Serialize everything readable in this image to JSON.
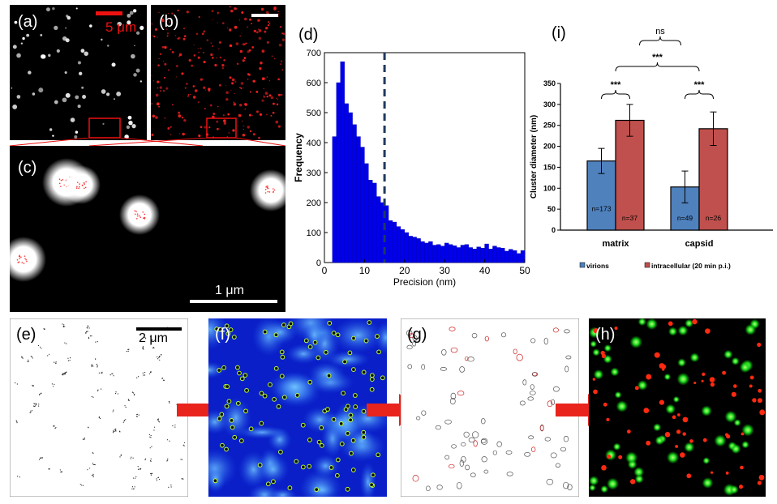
{
  "panels": {
    "a": {
      "letter": "(a)",
      "scalebar": "5 μm"
    },
    "b": {
      "letter": "(b)"
    },
    "c": {
      "letter": "(c)",
      "scalebar": "1 μm"
    },
    "d": {
      "letter": "(d)"
    },
    "i": {
      "letter": "(i)"
    },
    "e": {
      "letter": "(e)",
      "scalebar": "2 μm"
    },
    "f": {
      "letter": "(f)"
    },
    "g": {
      "letter": "(g)"
    },
    "h": {
      "letter": "(h)"
    }
  },
  "colors": {
    "histogram_bar": "#0000ee",
    "dashed_line": "#1f3a5f",
    "virions": "#4f81bd",
    "intracellular": "#c0504d",
    "arrow": "#e8241c"
  },
  "chart_data": [
    {
      "id": "d",
      "type": "bar",
      "xlabel": "Precision (nm)",
      "ylabel": "Frequency",
      "xlim": [
        0,
        50
      ],
      "ylim": [
        0,
        700
      ],
      "xticks": [
        0,
        10,
        20,
        30,
        40,
        50
      ],
      "yticks": [
        0,
        100,
        200,
        300,
        400,
        500,
        600,
        700
      ],
      "threshold": 15,
      "bin_width": 1,
      "bin_starts": [
        2,
        3,
        4,
        5,
        6,
        7,
        8,
        9,
        10,
        11,
        12,
        13,
        14,
        15,
        16,
        17,
        18,
        19,
        20,
        21,
        22,
        23,
        24,
        25,
        26,
        27,
        28,
        29,
        30,
        31,
        32,
        33,
        34,
        35,
        36,
        37,
        38,
        39,
        40,
        41,
        42,
        43,
        44,
        45,
        46,
        47,
        48,
        49
      ],
      "values": [
        420,
        600,
        670,
        530,
        500,
        460,
        420,
        385,
        330,
        275,
        265,
        220,
        200,
        190,
        140,
        135,
        120,
        110,
        100,
        88,
        85,
        80,
        70,
        65,
        70,
        58,
        60,
        55,
        65,
        60,
        56,
        50,
        58,
        60,
        50,
        45,
        52,
        48,
        62,
        45,
        55,
        50,
        48,
        38,
        44,
        40,
        30,
        40
      ]
    },
    {
      "id": "i",
      "type": "bar",
      "ylabel": "Cluster diameter (nm)",
      "ylim": [
        0,
        350
      ],
      "yticks": [
        0,
        50,
        100,
        150,
        200,
        250,
        300,
        350
      ],
      "categories": [
        "matrix",
        "capsid"
      ],
      "series": [
        {
          "name": "virions",
          "values": [
            165,
            103
          ],
          "errors": [
            30,
            38
          ],
          "n_labels": [
            "n=173",
            "n=49"
          ]
        },
        {
          "name": "intracellular (20 min p.i.)",
          "values": [
            262,
            242
          ],
          "errors": [
            38,
            40
          ],
          "n_labels": [
            "n=37",
            "n=26"
          ]
        }
      ],
      "significance": [
        {
          "label": "***",
          "between": "matrix virions vs intracellular"
        },
        {
          "label": "***",
          "between": "capsid virions vs intracellular"
        },
        {
          "label": "***",
          "between": "matrix vs capsid virions"
        },
        {
          "label": "ns",
          "between": "matrix vs capsid intracellular"
        }
      ],
      "legend_position": "bottom"
    }
  ]
}
